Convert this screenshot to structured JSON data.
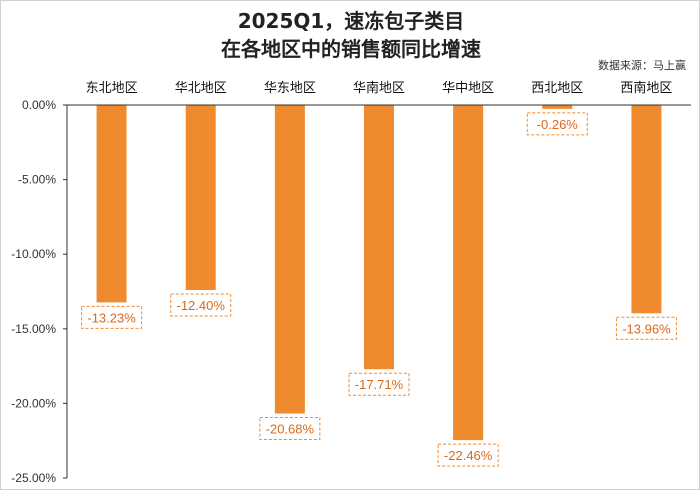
{
  "chart_data": {
    "type": "bar",
    "title": "2025Q1，速冻包子类目",
    "subtitle": "在各地区中的销售额同比增速",
    "source": "数据来源：马上赢",
    "categories": [
      "东北地区",
      "华北地区",
      "华东地区",
      "华南地区",
      "华中地区",
      "西北地区",
      "西南地区"
    ],
    "values": [
      -13.23,
      -12.4,
      -20.68,
      -17.71,
      -22.46,
      -0.26,
      -13.96
    ],
    "data_labels": [
      "-13.23%",
      "-12.40%",
      "-20.68%",
      "-17.71%",
      "-22.46%",
      "-0.26%",
      "-13.96%"
    ],
    "yticks": [
      "0.00%",
      "-5.00%",
      "-10.00%",
      "-15.00%",
      "-20.00%",
      "-25.00%"
    ],
    "ytick_values": [
      0,
      -5,
      -10,
      -15,
      -20,
      -25
    ],
    "ylim": [
      -25,
      0
    ],
    "xlabel": "",
    "ylabel": "",
    "grid": false,
    "legend": "none",
    "colors": {
      "bar": "#F08A2E",
      "label_border": "#F08A2E",
      "label_text": "#D96A1A",
      "axis": "#333333",
      "text": "#222222"
    }
  }
}
